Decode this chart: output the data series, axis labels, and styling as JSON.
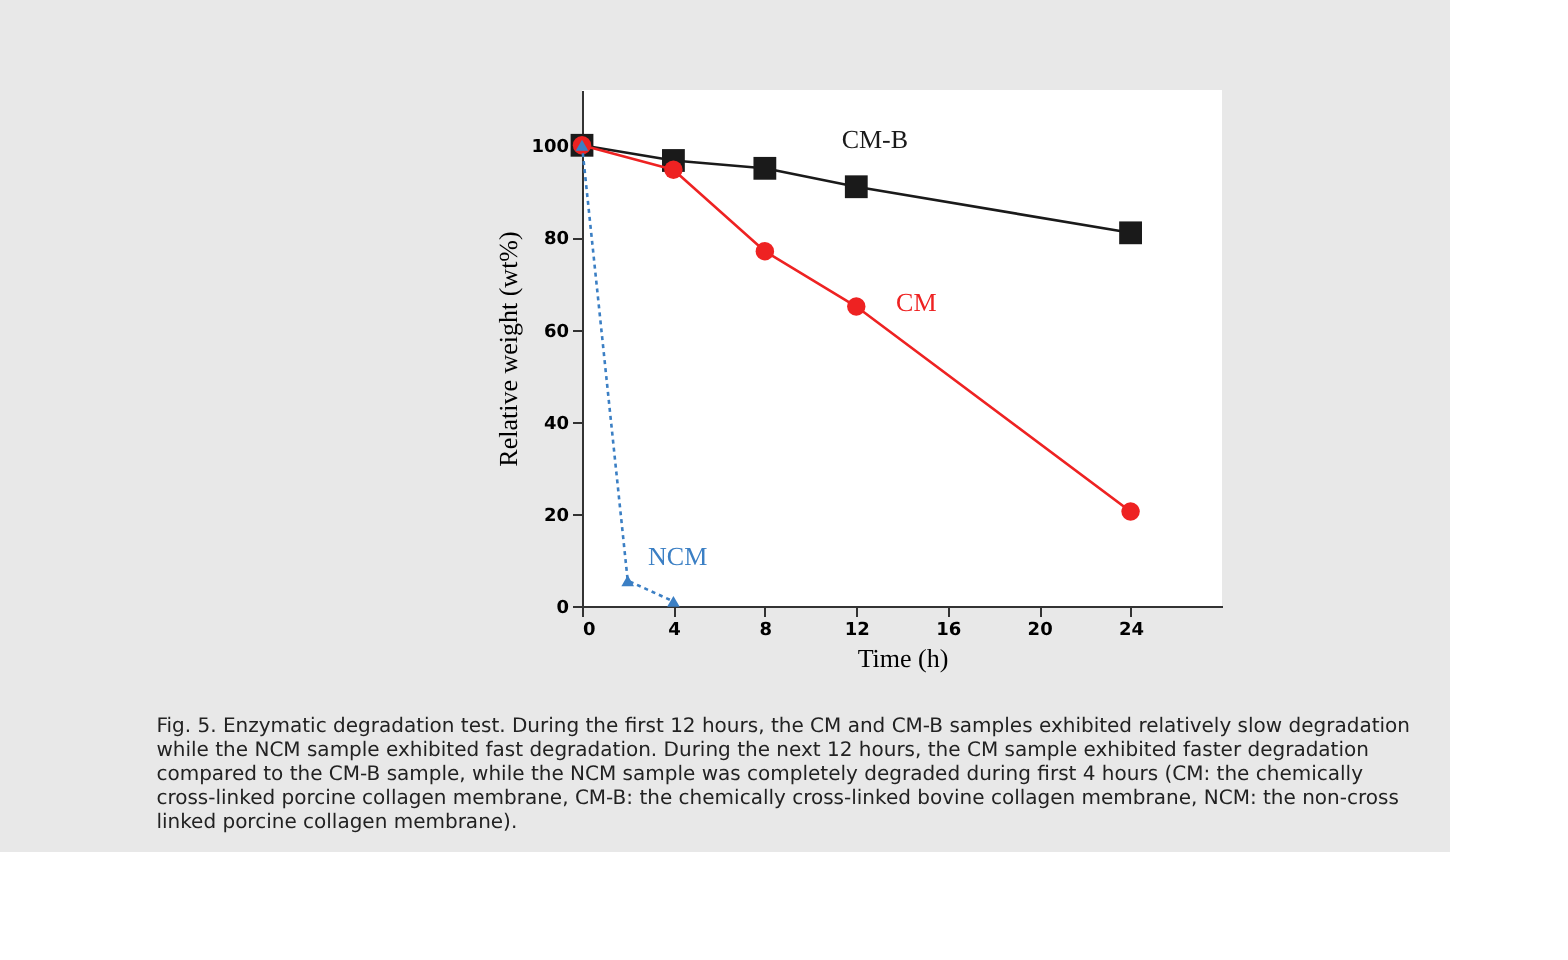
{
  "chart_data": {
    "type": "line",
    "xlabel": "Time (h)",
    "ylabel": "Relative weight (wt%)",
    "xlim": [
      0,
      28
    ],
    "xticks": [
      0,
      4,
      8,
      12,
      16,
      20,
      24
    ],
    "ylim": [
      0,
      112
    ],
    "yticks": [
      0,
      20,
      40,
      60,
      80,
      100
    ],
    "grid": false,
    "series": [
      {
        "name": "CM-B",
        "color": "#1a1a1a",
        "x": [
          0,
          4,
          8,
          12,
          24
        ],
        "values": [
          100,
          96.7,
          95,
          91,
          81
        ],
        "marker": "square",
        "line_style": "solid"
      },
      {
        "name": "CM",
        "color": "#ee2222",
        "x": [
          0,
          4,
          8,
          12,
          24
        ],
        "values": [
          100,
          94.7,
          77,
          65,
          20.5
        ],
        "marker": "circle",
        "line_style": "solid"
      },
      {
        "name": "NCM",
        "color": "#3b7fc4",
        "x": [
          0,
          2,
          4
        ],
        "values": [
          100,
          5.5,
          1
        ],
        "marker": "triangle",
        "line_style": "dotted"
      }
    ],
    "annotations": [
      "Fig. 5. Enzymatic degradation test. During the first 12 hours, the CM and CM-B samples exhibited relatively slow degradation while the NCM sample exhibited fast degradation. During the next 12 hours, the CM sample exhibited faster degradation compared to the CM-B sample, while the NCM sample was completely degraded during first 4 hours (CM: the chemically cross-linked porcine collagen membrane, CM-B: the chemically cross-linked bovine collagen membrane, NCM: the non-cross linked porcine collagen membrane)."
    ]
  }
}
